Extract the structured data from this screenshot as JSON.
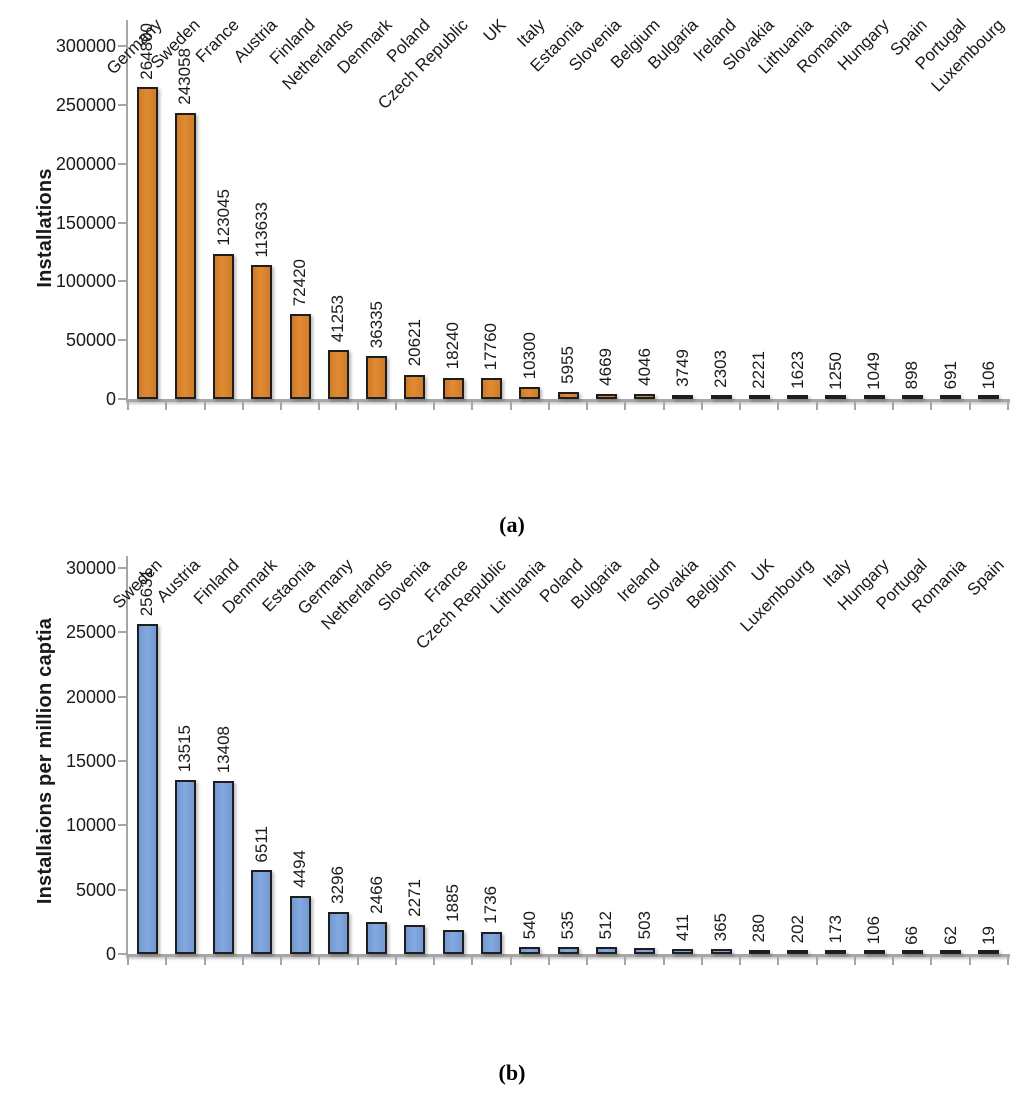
{
  "chart_data": [
    {
      "id": "a",
      "type": "bar",
      "caption": "(a)",
      "ylabel": "Installations",
      "xlabel": "",
      "ylim": [
        0,
        300000
      ],
      "ytick_step": 50000,
      "yticks": [
        "0",
        "50000",
        "100000",
        "150000",
        "200000",
        "250000",
        "300000"
      ],
      "grid": "off",
      "legend": "none",
      "bar_fill_color": "#D9822D",
      "bar_border_color": "#1E1E1E",
      "categories": [
        "Germany",
        "Sweden",
        "France",
        "Austria",
        "Finland",
        "Netherlands",
        "Denmark",
        "Poland",
        "Czech Republic",
        "UK",
        "Italy",
        "Estaonia",
        "Slovenia",
        "Belgium",
        "Bulgaria",
        "Ireland",
        "Slovakia",
        "Lithuania",
        "Romania",
        "Hungary",
        "Spain",
        "Portugal",
        "Luxembourg"
      ],
      "values": [
        264800,
        243058,
        123045,
        113633,
        72420,
        41253,
        36335,
        20621,
        18240,
        17760,
        10300,
        5955,
        4669,
        4046,
        3749,
        2303,
        2221,
        1623,
        1250,
        1049,
        898,
        691,
        106
      ],
      "data_labels": [
        "264800",
        "243058",
        "123045",
        "113633",
        "72420",
        "41253",
        "36335",
        "20621",
        "18240",
        "17760",
        "10300",
        "5955",
        "4669",
        "4046",
        "3749",
        "2303",
        "2221",
        "1623",
        "1250",
        "1049",
        "898",
        "691",
        "106"
      ]
    },
    {
      "id": "b",
      "type": "bar",
      "caption": "(b)",
      "ylabel": "Installaions per million captia",
      "xlabel": "",
      "ylim": [
        0,
        30000
      ],
      "ytick_step": 5000,
      "yticks": [
        "0",
        "5000",
        "10000",
        "15000",
        "20000",
        "25000",
        "30000"
      ],
      "grid": "off",
      "legend": "none",
      "bar_fill_color": "#7CA1DA",
      "bar_border_color": "#1E1E1E",
      "categories": [
        "Sweden",
        "Austria",
        "Finland",
        "Denmark",
        "Estaonia",
        "Germany",
        "Netherlands",
        "Slovenia",
        "France",
        "Czech Republic",
        "Lithuania",
        "Poland",
        "Bulgaria",
        "Ireland",
        "Slovakia",
        "Belgium",
        "UK",
        "Luxembourg",
        "Italy",
        "Hungary",
        "Portugal",
        "Romania",
        "Spain"
      ],
      "values": [
        25631,
        13515,
        13408,
        6511,
        4494,
        3296,
        2466,
        2271,
        1885,
        1736,
        540,
        535,
        512,
        503,
        411,
        365,
        280,
        202,
        173,
        106,
        66,
        62,
        19
      ],
      "data_labels": [
        "25631",
        "13515",
        "13408",
        "6511",
        "4494",
        "3296",
        "2466",
        "2271",
        "1885",
        "1736",
        "540",
        "535",
        "512",
        "503",
        "411",
        "365",
        "280",
        "202",
        "173",
        "106",
        "66",
        "62",
        "19"
      ]
    }
  ]
}
